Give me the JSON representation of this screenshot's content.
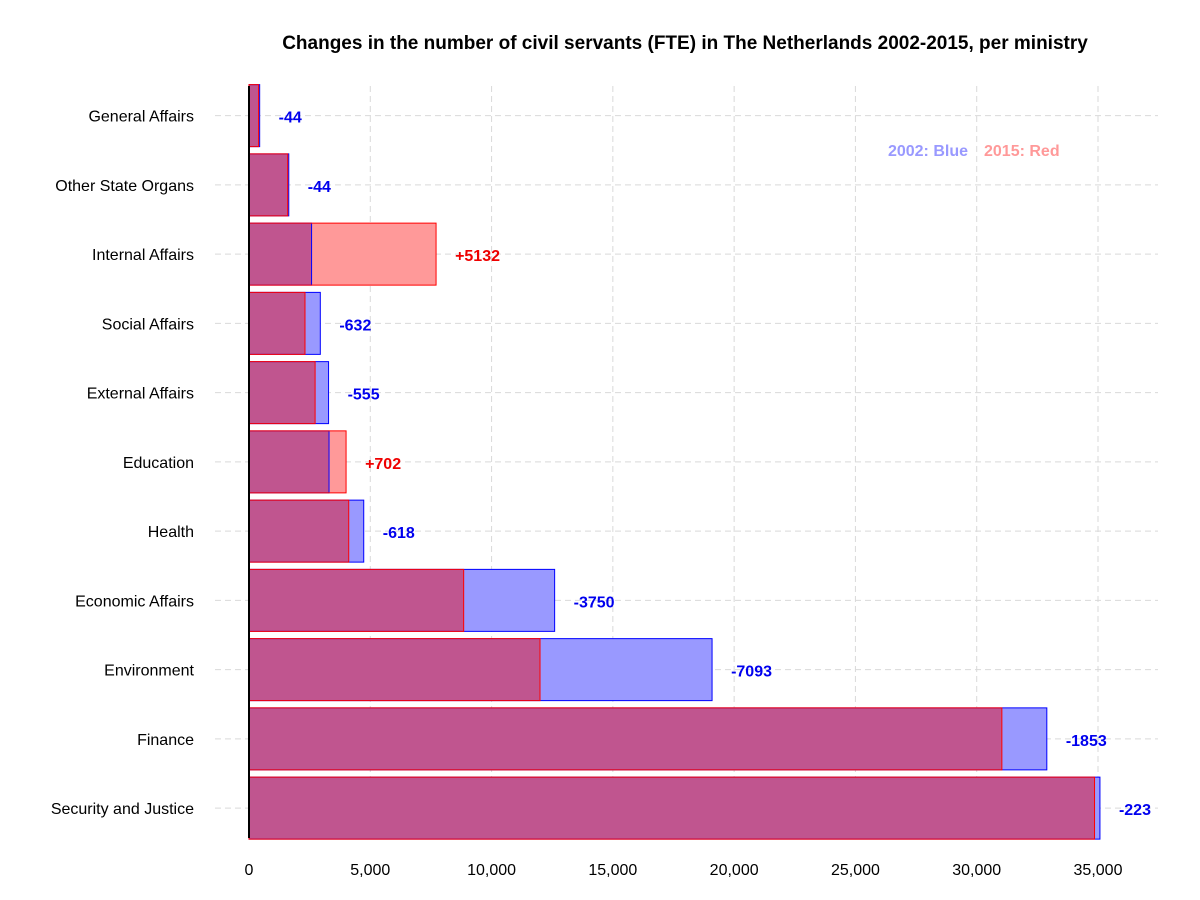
{
  "chart_data": {
    "type": "bar",
    "orientation": "horizontal",
    "title": "Changes in the number of civil servants (FTE) in The Netherlands 2002-2015, per ministry",
    "xlabel": "",
    "ylabel": "",
    "xlim": [
      0,
      37500
    ],
    "x_ticks": [
      0,
      5000,
      10000,
      15000,
      20000,
      25000,
      30000,
      35000
    ],
    "x_tick_labels": [
      "0",
      "5,000",
      "10,000",
      "15,000",
      "20,000",
      "25,000",
      "30,000",
      "35,000"
    ],
    "grid": true,
    "legend_position": "top-right",
    "categories": [
      "General Affairs",
      "Other State Organs",
      "Internal Affairs",
      "Social Affairs",
      "External Affairs",
      "Education",
      "Health",
      "Economic Affairs",
      "Environment",
      "Finance",
      "Security and Justice"
    ],
    "series": [
      {
        "name": "2002",
        "color": "#9999ff",
        "stroke": "#0000ff",
        "values": [
          440,
          1640,
          2580,
          2940,
          3280,
          3300,
          4730,
          12600,
          19090,
          32890,
          35080
        ]
      },
      {
        "name": "2015",
        "color": "#ff9999",
        "stroke": "#ff0000",
        "values": [
          396,
          1596,
          7712,
          2308,
          2725,
          4002,
          4112,
          8850,
          11997,
          31037,
          34857
        ]
      }
    ],
    "change_labels": [
      "-44",
      "-44",
      "+5132",
      "-632",
      "-555",
      "+702",
      "-618",
      "-3750",
      "-7093",
      "-1853",
      "-223"
    ],
    "legend": [
      {
        "text": "2002: Blue",
        "color": "#9999ff"
      },
      {
        "text": "2015: Red",
        "color": "#ff9999"
      }
    ],
    "label_colors": {
      "decrease": "#0000ee",
      "increase": "#ee0000"
    },
    "overlap_color": "#c0558f"
  }
}
